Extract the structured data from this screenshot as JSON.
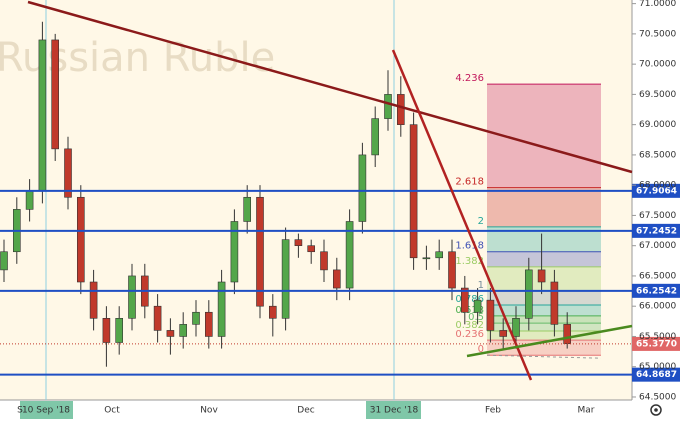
{
  "chart_data": {
    "type": "candlestick",
    "title": "Russian Ruble",
    "up_color": "#53a64a",
    "down_color": "#c0392b",
    "open": [
      66.6,
      66.9,
      67.6,
      67.9,
      70.4,
      68.6,
      67.8,
      66.4,
      65.8,
      65.4,
      65.8,
      66.5,
      66.0,
      65.6,
      65.5,
      65.7,
      65.9,
      65.5,
      66.4,
      67.4,
      67.8,
      66.0,
      65.8,
      67.1,
      67.0,
      66.9,
      66.6,
      66.3,
      67.4,
      68.5,
      69.1,
      69.5,
      69.0,
      66.8,
      66.8,
      66.9,
      66.3,
      65.9,
      66.1,
      65.6,
      65.5,
      65.8,
      66.6,
      66.4,
      65.7
    ],
    "close": [
      66.9,
      67.6,
      67.9,
      70.4,
      68.6,
      67.8,
      66.4,
      65.8,
      65.4,
      65.8,
      66.5,
      66.0,
      65.6,
      65.5,
      65.7,
      65.9,
      65.5,
      66.4,
      67.4,
      67.8,
      66.0,
      65.8,
      67.1,
      67.0,
      66.9,
      66.6,
      66.3,
      67.4,
      68.5,
      69.1,
      69.5,
      69.0,
      66.8,
      66.8,
      66.9,
      66.3,
      65.9,
      66.1,
      65.6,
      65.5,
      65.8,
      66.6,
      66.4,
      65.7,
      65.38
    ],
    "high": [
      67.1,
      67.8,
      68.1,
      70.7,
      70.5,
      68.8,
      68.0,
      66.6,
      66.0,
      66.0,
      66.7,
      66.7,
      66.2,
      65.8,
      65.9,
      66.1,
      66.1,
      66.6,
      67.6,
      68.0,
      68.0,
      66.2,
      67.3,
      67.2,
      67.1,
      67.1,
      66.8,
      67.6,
      68.7,
      69.3,
      69.9,
      69.8,
      69.2,
      67.0,
      67.1,
      67.1,
      66.5,
      66.3,
      66.3,
      65.8,
      66.0,
      66.8,
      67.2,
      66.6,
      65.9
    ],
    "low": [
      66.4,
      66.7,
      67.4,
      67.7,
      68.4,
      67.6,
      66.2,
      65.6,
      65.0,
      65.2,
      65.6,
      65.8,
      65.4,
      65.2,
      65.3,
      65.5,
      65.3,
      65.3,
      66.2,
      67.2,
      65.8,
      65.5,
      65.6,
      66.8,
      66.7,
      66.4,
      66.1,
      66.1,
      67.2,
      68.3,
      68.9,
      68.8,
      66.6,
      66.6,
      66.6,
      66.1,
      65.7,
      65.7,
      65.4,
      65.3,
      65.3,
      65.6,
      66.2,
      65.5,
      65.3
    ],
    "ylim": [
      64.45,
      71.06
    ],
    "yticks": [
      {
        "value": 71.0,
        "label": "71.0000"
      },
      {
        "value": 70.5,
        "label": "70.5000"
      },
      {
        "value": 70.0,
        "label": "70.0000"
      },
      {
        "value": 69.5,
        "label": "69.5000"
      },
      {
        "value": 69.0,
        "label": "69.0000"
      },
      {
        "value": 68.5,
        "label": "68.5000"
      },
      {
        "value": 68.0,
        "label": "68.0000"
      },
      {
        "value": 67.5,
        "label": "67.5000"
      },
      {
        "value": 67.0,
        "label": "67.0000"
      },
      {
        "value": 66.5,
        "label": "66.5000"
      },
      {
        "value": 66.0,
        "label": "66.0000"
      },
      {
        "value": 65.5,
        "label": "65.5000"
      },
      {
        "value": 65.0,
        "label": "65.0000"
      },
      {
        "value": 64.5,
        "label": "64.5000"
      }
    ],
    "levels": [
      {
        "value": 67.9064,
        "label": "67.9064"
      },
      {
        "value": 67.2452,
        "label": "67.2452"
      },
      {
        "value": 66.2542,
        "label": "66.2542"
      },
      {
        "value": 64.8687,
        "label": "64.8687"
      }
    ],
    "last_price": {
      "value": 65.377,
      "label": "65.3770"
    },
    "fib": [
      {
        "level": 0,
        "price": 65.19,
        "color": "#e57373"
      },
      {
        "level": 0.236,
        "price": 65.44,
        "color": "#e57373"
      },
      {
        "level": 0.382,
        "price": 65.59,
        "color": "#9ccc65"
      },
      {
        "level": 0.5,
        "price": 65.72,
        "color": "#66bb6a"
      },
      {
        "level": 0.618,
        "price": 65.84,
        "color": "#4caf50"
      },
      {
        "level": 0.786,
        "price": 66.02,
        "color": "#26a69a"
      },
      {
        "level": 1,
        "price": 66.25,
        "color": "#78909c"
      },
      {
        "level": 1.382,
        "price": 66.65,
        "color": "#9ccc65"
      },
      {
        "level": 1.618,
        "price": 66.9,
        "color": "#3f51b5"
      },
      {
        "level": 2,
        "price": 67.31,
        "color": "#26a69a"
      },
      {
        "level": 2.618,
        "price": 67.96,
        "color": "#c62828"
      },
      {
        "level": 4.236,
        "price": 69.67,
        "color": "#c2185b"
      }
    ],
    "x_labels": [
      "S",
      "10 Sep '18",
      "Oct",
      "Nov",
      "Dec",
      "31 Dec '18",
      "Feb",
      "Mar"
    ]
  }
}
